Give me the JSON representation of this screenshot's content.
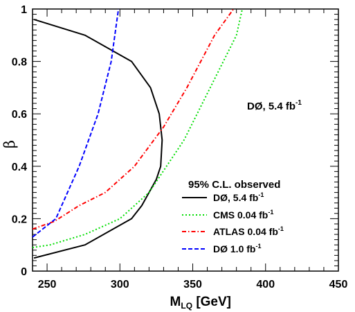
{
  "chart_data": {
    "type": "line",
    "xlabel_main": "M",
    "xlabel_sub": "LQ",
    "xlabel_rest": " [GeV]",
    "ylabel": "β",
    "xlim": [
      240,
      450
    ],
    "ylim": [
      0,
      1
    ],
    "x_ticks": [
      250,
      300,
      350,
      400,
      450
    ],
    "y_ticks": [
      0,
      0.2,
      0.4,
      0.6,
      0.8,
      1
    ],
    "y_tick_labels": [
      "0",
      "0.2",
      "0.4",
      "0.6",
      "0.8",
      "1"
    ],
    "annotation": {
      "text": "DØ, 5.4 fb",
      "sup": "-1"
    },
    "legend_title": "95% C.L. observed",
    "legend_placement": "lower-right",
    "series": [
      {
        "name": "DØ, 5.4 fb",
        "name_sup": "-1",
        "color": "#000000",
        "dash": "solid",
        "x": [
          241,
          276,
          308,
          321,
          327,
          329,
          328,
          325,
          320,
          315,
          308,
          276,
          241
        ],
        "y": [
          0.96,
          0.9,
          0.8,
          0.7,
          0.6,
          0.5,
          0.4,
          0.35,
          0.3,
          0.25,
          0.2,
          0.1,
          0.05
        ]
      },
      {
        "name": "CMS 0.04 fb",
        "name_sup": "-1",
        "color": "#00dd00",
        "dash": "dotted",
        "x": [
          240,
          252,
          276,
          300,
          320,
          344,
          362,
          380,
          384
        ],
        "y": [
          0.09,
          0.1,
          0.14,
          0.2,
          0.3,
          0.5,
          0.7,
          0.9,
          1.0
        ]
      },
      {
        "name": "ATLAS 0.04 fb",
        "name_sup": "-1",
        "color": "#ff0000",
        "dash": "dashdot",
        "x": [
          240,
          255,
          272,
          290,
          310,
          330,
          346,
          365,
          378
        ],
        "y": [
          0.16,
          0.19,
          0.25,
          0.3,
          0.4,
          0.55,
          0.7,
          0.9,
          1.0
        ]
      },
      {
        "name": "DØ 1.0 fb",
        "name_sup": "-1",
        "color": "#0000ff",
        "dash": "dashed",
        "x": [
          240,
          256,
          272,
          285,
          294,
          299
        ],
        "y": [
          0.13,
          0.2,
          0.4,
          0.6,
          0.8,
          1.0
        ]
      }
    ]
  }
}
